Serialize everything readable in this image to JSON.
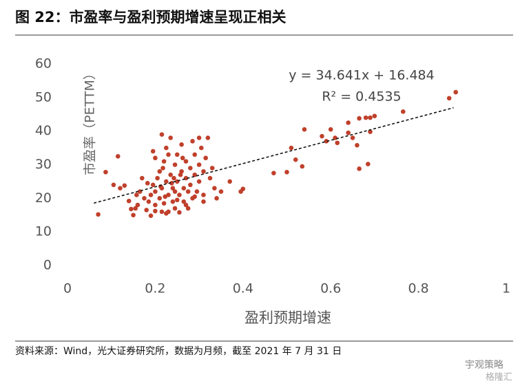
{
  "chart_data": {
    "type": "scatter",
    "title": "图 22：市盈率与盈利预期增速呈现正相关",
    "x_label": "盈利预期增速",
    "y_label": "市盈率（PETTM）",
    "annotations": [
      "y = 34.641x + 16.484",
      "R² = 0.4535"
    ],
    "source": "资料来源：Wind，光大证券研究所，数据为月频，截至 2021 年 7 月 31 日",
    "watermark": [
      "宇观策略",
      "格隆汇"
    ],
    "color": "#c0402b",
    "trendline": {
      "slope": 34.641,
      "intercept": 16.484,
      "x_range": [
        0.06,
        0.88
      ]
    },
    "xlim": [
      0,
      1
    ],
    "xticks": [
      0,
      0.2,
      0.4,
      0.6,
      0.8,
      1
    ],
    "ylim": [
      0,
      60
    ],
    "yticks": [
      0,
      10,
      20,
      30,
      40,
      50,
      60
    ],
    "x": [
      0.07,
      0.087,
      0.105,
      0.115,
      0.12,
      0.13,
      0.14,
      0.145,
      0.15,
      0.155,
      0.16,
      0.165,
      0.17,
      0.175,
      0.18,
      0.185,
      0.19,
      0.19,
      0.195,
      0.2,
      0.2,
      0.2,
      0.205,
      0.21,
      0.21,
      0.215,
      0.215,
      0.22,
      0.22,
      0.225,
      0.225,
      0.23,
      0.23,
      0.235,
      0.235,
      0.24,
      0.24,
      0.245,
      0.245,
      0.25,
      0.25,
      0.255,
      0.255,
      0.26,
      0.26,
      0.265,
      0.265,
      0.27,
      0.27,
      0.275,
      0.275,
      0.28,
      0.28,
      0.285,
      0.285,
      0.29,
      0.29,
      0.295,
      0.3,
      0.3,
      0.305,
      0.31,
      0.31,
      0.315,
      0.32,
      0.325,
      0.33,
      0.335,
      0.34,
      0.35,
      0.37,
      0.395,
      0.4,
      0.47,
      0.5,
      0.51,
      0.52,
      0.535,
      0.54,
      0.58,
      0.59,
      0.6,
      0.61,
      0.615,
      0.64,
      0.64,
      0.65,
      0.66,
      0.665,
      0.665,
      0.68,
      0.685,
      0.69,
      0.69,
      0.7,
      0.765,
      0.87,
      0.885,
      0.1575,
      0.2125,
      0.2225,
      0.2375,
      0.2425,
      0.2575,
      0.2625,
      0.2175,
      0.1825,
      0.195,
      0.215,
      0.23,
      0.245,
      0.27,
      0.2,
      0.225,
      0.25,
      0.3,
      0.29,
      0.31
    ],
    "values": [
      15.2,
      27.8,
      24,
      32.5,
      23,
      23.8,
      19.2,
      16.8,
      15,
      17,
      18,
      22,
      26,
      20,
      16.5,
      19,
      21,
      14.8,
      24,
      18,
      22,
      32,
      26,
      20,
      28,
      16,
      23,
      31,
      18.5,
      25,
      35,
      21,
      16,
      27,
      38,
      23,
      19,
      30,
      17,
      25,
      33,
      21,
      15.8,
      28,
      36,
      23,
      19,
      31,
      26,
      17,
      22,
      29,
      24,
      37,
      20,
      27,
      33,
      22,
      30,
      25,
      35,
      28,
      21,
      32,
      38,
      26,
      29,
      23,
      20,
      22,
      25,
      22,
      22.8,
      27.5,
      27.8,
      35,
      31.5,
      29.5,
      40.5,
      38.5,
      37,
      40.5,
      38,
      36.5,
      39.5,
      42.5,
      38,
      35.8,
      43.8,
      28.8,
      44,
      30.2,
      39.8,
      44,
      44.5,
      45.8,
      49.8,
      51.6,
      21,
      23.5,
      20.5,
      24.5,
      26,
      27,
      32,
      29,
      24.5,
      34,
      39,
      33,
      22,
      18,
      16.2,
      15.5,
      19.5,
      38,
      20.5,
      19
    ]
  }
}
